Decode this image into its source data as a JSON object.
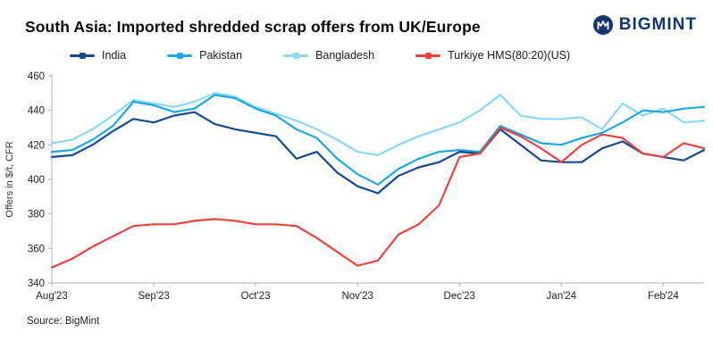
{
  "title": "South Asia: Imported shredded scrap offers from UK/Europe",
  "logo": {
    "text": "BIGMINT",
    "color": "#14356d"
  },
  "source": "Source: BigMint",
  "chart_data": {
    "type": "line",
    "title": "South Asia: Imported shredded scrap offers from UK/Europe",
    "xlabel": "",
    "ylabel": "Offers in $/t, CFR",
    "ylim": [
      340,
      460
    ],
    "y_tick_step": 20,
    "grid": false,
    "legend_position": "top",
    "x_tick_labels": [
      "Aug'23",
      "Sep'23",
      "Oct'23",
      "Nov'23",
      "Dec'23",
      "Jan'24",
      "Feb'24"
    ],
    "x_tick_indices": [
      0,
      5,
      10,
      15,
      20,
      25,
      30
    ],
    "n_points": 33,
    "draw_order": [
      2,
      1,
      0,
      3
    ],
    "series": [
      {
        "name": "India",
        "color": "#17498f",
        "values": [
          413,
          414,
          420,
          428,
          435,
          433,
          437,
          439,
          432,
          429,
          427,
          425,
          412,
          416,
          404,
          396,
          392,
          402,
          407,
          410,
          416,
          415,
          429,
          420,
          411,
          410,
          410,
          418,
          422,
          415,
          413,
          411,
          417
        ]
      },
      {
        "name": "Pakistan",
        "color": "#1ea7e0",
        "values": [
          416,
          417,
          423,
          431,
          445,
          443,
          439,
          441,
          449,
          447,
          441,
          437,
          429,
          424,
          412,
          403,
          397,
          406,
          412,
          416,
          417,
          416,
          431,
          426,
          421,
          420,
          424,
          427,
          433,
          440,
          439,
          441,
          442
        ]
      },
      {
        "name": "Bangladesh",
        "color": "#8cd7f4",
        "values": [
          421,
          423,
          429,
          437,
          446,
          444,
          442,
          445,
          450,
          448,
          442,
          438,
          434,
          429,
          423,
          416,
          414,
          420,
          425,
          429,
          433,
          440,
          449,
          437,
          435,
          435,
          436,
          429,
          444,
          437,
          441,
          433,
          434
        ]
      },
      {
        "name": "Turkiye HMS(80:20)(US)",
        "color": "#e8433e",
        "values": [
          349,
          354,
          361,
          367,
          373,
          374,
          374,
          376,
          377,
          376,
          374,
          374,
          373,
          366,
          358,
          350,
          353,
          368,
          374,
          385,
          413,
          415,
          430,
          425,
          418,
          410,
          420,
          426,
          424,
          415,
          413,
          421,
          418
        ]
      }
    ]
  }
}
